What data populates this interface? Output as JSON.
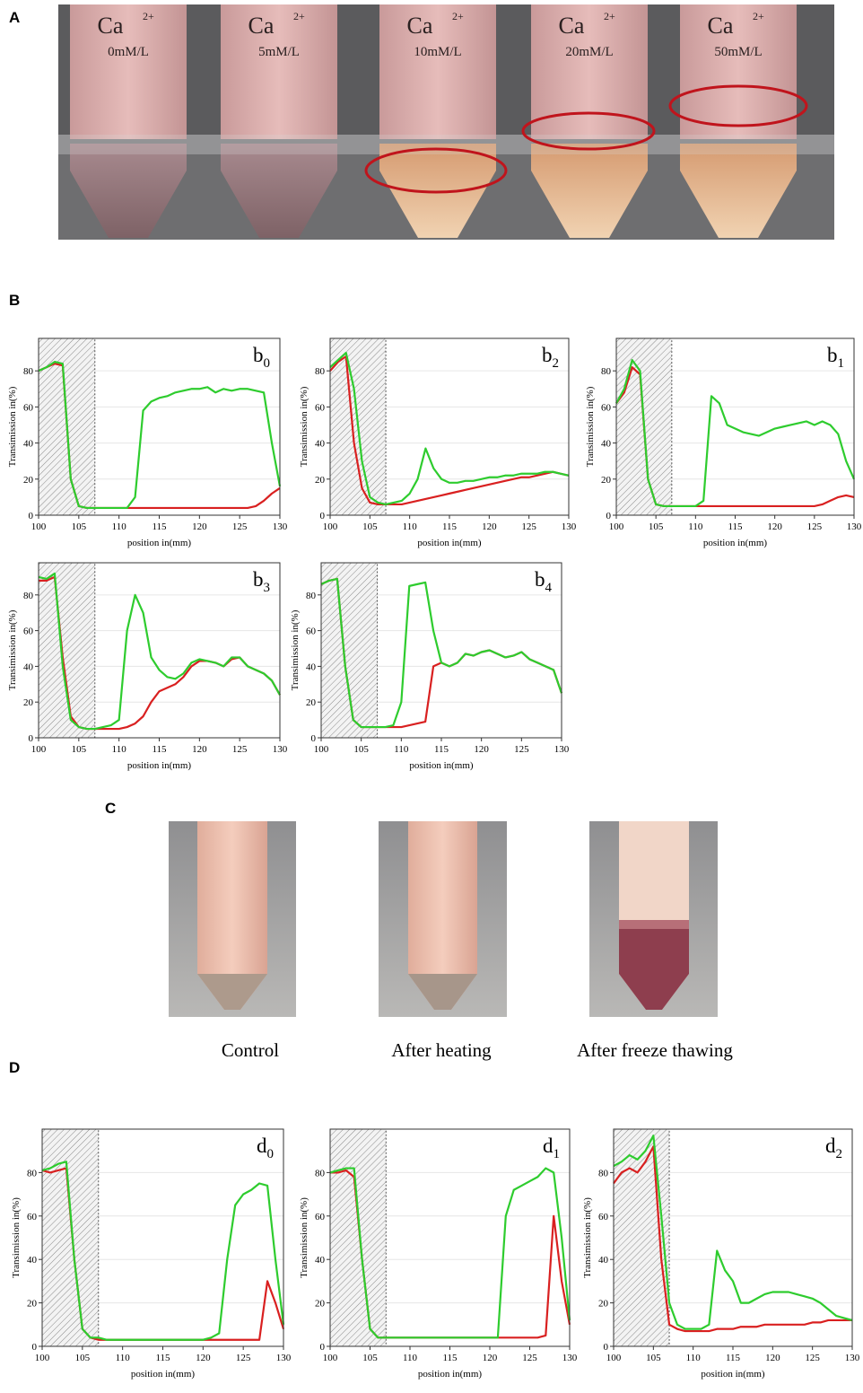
{
  "panel_labels": [
    "A",
    "B",
    "C",
    "D"
  ],
  "photo_a": {
    "tubes": [
      {
        "ion": "Ca",
        "charge": "2+",
        "concentration": "0mM/L"
      },
      {
        "ion": "Ca",
        "charge": "2+",
        "concentration": "5mM/L"
      },
      {
        "ion": "Ca",
        "charge": "2+",
        "concentration": "10mM/L"
      },
      {
        "ion": "Ca",
        "charge": "2+",
        "concentration": "20mM/L"
      },
      {
        "ion": "Ca",
        "charge": "2+",
        "concentration": "50mM/L"
      }
    ]
  },
  "photo_c": {
    "captions": [
      "Control",
      "After heating",
      "After freeze thawing"
    ]
  },
  "chart_data": [
    {
      "type": "line",
      "panel_label": {
        "text": "b",
        "sub": "0"
      },
      "x_label": "position in(mm)",
      "y_label": "Transimission in(%)",
      "xlim": [
        100,
        130
      ],
      "xticks": [
        100,
        105,
        110,
        115,
        120,
        125,
        130
      ],
      "ylim": [
        0,
        98
      ],
      "yticks": [
        0,
        20,
        40,
        60,
        80
      ],
      "hatched_region": [
        100,
        107
      ],
      "x": [
        100,
        101,
        102,
        103,
        104,
        105,
        106,
        107,
        108,
        109,
        110,
        111,
        112,
        113,
        114,
        115,
        116,
        117,
        118,
        119,
        120,
        121,
        122,
        123,
        124,
        125,
        126,
        127,
        128,
        129,
        130
      ],
      "series": [
        {
          "color": "#d92020",
          "values": [
            80,
            82,
            84,
            83,
            20,
            5,
            4,
            4,
            4,
            4,
            4,
            4,
            4,
            4,
            4,
            4,
            4,
            4,
            4,
            4,
            4,
            4,
            4,
            4,
            4,
            4,
            4,
            5,
            8,
            12,
            15
          ]
        },
        {
          "color": "#2ecc2e",
          "values": [
            80,
            82,
            85,
            84,
            20,
            5,
            4,
            4,
            4,
            4,
            4,
            4,
            10,
            58,
            63,
            65,
            66,
            68,
            69,
            70,
            70,
            71,
            68,
            70,
            69,
            70,
            70,
            69,
            68,
            40,
            16
          ]
        }
      ]
    },
    {
      "type": "line",
      "panel_label": {
        "text": "b",
        "sub": "2"
      },
      "x_label": "position in(mm)",
      "y_label": "Transimission in(%)",
      "xlim": [
        100,
        130
      ],
      "xticks": [
        100,
        105,
        110,
        115,
        120,
        125,
        130
      ],
      "ylim": [
        0,
        98
      ],
      "yticks": [
        0,
        20,
        40,
        60,
        80
      ],
      "hatched_region": [
        100,
        107
      ],
      "x": [
        100,
        101,
        102,
        103,
        104,
        105,
        106,
        107,
        108,
        109,
        110,
        111,
        112,
        113,
        114,
        115,
        116,
        117,
        118,
        119,
        120,
        121,
        122,
        123,
        124,
        125,
        126,
        127,
        128,
        129,
        130
      ],
      "series": [
        {
          "color": "#d92020",
          "values": [
            80,
            85,
            88,
            40,
            15,
            7,
            6,
            6,
            6,
            6,
            7,
            8,
            9,
            10,
            11,
            12,
            13,
            14,
            15,
            16,
            17,
            18,
            19,
            20,
            21,
            21,
            22,
            23,
            24,
            23,
            22
          ]
        },
        {
          "color": "#2ecc2e",
          "values": [
            82,
            86,
            90,
            70,
            30,
            10,
            7,
            6,
            7,
            8,
            12,
            20,
            37,
            26,
            20,
            18,
            18,
            19,
            19,
            20,
            21,
            21,
            22,
            22,
            23,
            23,
            23,
            24,
            24,
            23,
            22
          ]
        }
      ]
    },
    {
      "type": "line",
      "panel_label": {
        "text": "b",
        "sub": "1"
      },
      "x_label": "position in(mm)",
      "y_label": "Transimission in(%)",
      "xlim": [
        100,
        130
      ],
      "xticks": [
        100,
        105,
        110,
        115,
        120,
        125,
        130
      ],
      "ylim": [
        0,
        98
      ],
      "yticks": [
        0,
        20,
        40,
        60,
        80
      ],
      "hatched_region": [
        100,
        107
      ],
      "x": [
        100,
        101,
        102,
        103,
        104,
        105,
        106,
        107,
        108,
        109,
        110,
        111,
        112,
        113,
        114,
        115,
        116,
        117,
        118,
        119,
        120,
        121,
        122,
        123,
        124,
        125,
        126,
        127,
        128,
        129,
        130
      ],
      "series": [
        {
          "color": "#d92020",
          "values": [
            62,
            68,
            82,
            78,
            20,
            6,
            5,
            5,
            5,
            5,
            5,
            5,
            5,
            5,
            5,
            5,
            5,
            5,
            5,
            5,
            5,
            5,
            5,
            5,
            5,
            5,
            6,
            8,
            10,
            11,
            10
          ]
        },
        {
          "color": "#2ecc2e",
          "values": [
            62,
            70,
            86,
            80,
            20,
            6,
            5,
            5,
            5,
            5,
            5,
            8,
            66,
            62,
            50,
            48,
            46,
            45,
            44,
            46,
            48,
            49,
            50,
            51,
            52,
            50,
            52,
            50,
            45,
            30,
            20
          ]
        }
      ]
    },
    {
      "type": "line",
      "panel_label": {
        "text": "b",
        "sub": "3"
      },
      "x_label": "position in(mm)",
      "y_label": "Transimission in(%)",
      "xlim": [
        100,
        130
      ],
      "xticks": [
        100,
        105,
        110,
        115,
        120,
        125,
        130
      ],
      "ylim": [
        0,
        98
      ],
      "yticks": [
        0,
        20,
        40,
        60,
        80
      ],
      "hatched_region": [
        100,
        107
      ],
      "x": [
        100,
        101,
        102,
        103,
        104,
        105,
        106,
        107,
        108,
        109,
        110,
        111,
        112,
        113,
        114,
        115,
        116,
        117,
        118,
        119,
        120,
        121,
        122,
        123,
        124,
        125,
        126,
        127,
        128,
        129,
        130
      ],
      "series": [
        {
          "color": "#d92020",
          "values": [
            88,
            88,
            90,
            45,
            12,
            6,
            5,
            5,
            5,
            5,
            5,
            6,
            8,
            12,
            20,
            26,
            28,
            30,
            34,
            40,
            43,
            43,
            42,
            40,
            44,
            45,
            40,
            38,
            36,
            32,
            24
          ]
        },
        {
          "color": "#2ecc2e",
          "values": [
            90,
            89,
            92,
            40,
            10,
            6,
            5,
            5,
            6,
            7,
            10,
            60,
            80,
            70,
            45,
            38,
            34,
            33,
            36,
            42,
            44,
            43,
            42,
            40,
            45,
            45,
            40,
            38,
            36,
            32,
            24
          ]
        }
      ]
    },
    {
      "type": "line",
      "panel_label": {
        "text": "b",
        "sub": "4"
      },
      "x_label": "position in(mm)",
      "y_label": "Transimission in(%)",
      "xlim": [
        100,
        130
      ],
      "xticks": [
        100,
        105,
        110,
        115,
        120,
        125,
        130
      ],
      "ylim": [
        0,
        98
      ],
      "yticks": [
        0,
        20,
        40,
        60,
        80
      ],
      "hatched_region": [
        100,
        107
      ],
      "x": [
        100,
        101,
        102,
        103,
        104,
        105,
        106,
        107,
        108,
        109,
        110,
        111,
        112,
        113,
        114,
        115,
        116,
        117,
        118,
        119,
        120,
        121,
        122,
        123,
        124,
        125,
        126,
        127,
        128,
        129,
        130
      ],
      "series": [
        {
          "color": "#d92020",
          "values": [
            86,
            88,
            89,
            40,
            10,
            6,
            6,
            6,
            6,
            6,
            6,
            7,
            8,
            9,
            40,
            42,
            40,
            42,
            47,
            46,
            48,
            49,
            47,
            45,
            46,
            48,
            44,
            42,
            40,
            38,
            25
          ]
        },
        {
          "color": "#2ecc2e",
          "values": [
            86,
            88,
            89,
            40,
            10,
            6,
            6,
            6,
            6,
            7,
            20,
            85,
            86,
            87,
            60,
            42,
            40,
            42,
            47,
            46,
            48,
            49,
            47,
            45,
            46,
            48,
            44,
            42,
            40,
            38,
            25
          ]
        }
      ]
    },
    {
      "type": "line",
      "panel_label": {
        "text": "d",
        "sub": "0"
      },
      "x_label": "position in(mm)",
      "y_label": "Transimission in(%)",
      "xlim": [
        100,
        130
      ],
      "xticks": [
        100,
        105,
        110,
        115,
        120,
        125,
        130
      ],
      "ylim": [
        0,
        100
      ],
      "yticks": [
        0,
        20,
        40,
        60,
        80
      ],
      "hatched_region": [
        100,
        107
      ],
      "x": [
        100,
        101,
        102,
        103,
        104,
        105,
        106,
        107,
        108,
        109,
        110,
        111,
        112,
        113,
        114,
        115,
        116,
        117,
        118,
        119,
        120,
        121,
        122,
        123,
        124,
        125,
        126,
        127,
        128,
        129,
        130
      ],
      "series": [
        {
          "color": "#d92020",
          "values": [
            81,
            80,
            81,
            82,
            40,
            8,
            4,
            3,
            3,
            3,
            3,
            3,
            3,
            3,
            3,
            3,
            3,
            3,
            3,
            3,
            3,
            3,
            3,
            3,
            3,
            3,
            3,
            3,
            30,
            20,
            8
          ]
        },
        {
          "color": "#2ecc2e",
          "values": [
            81,
            82,
            84,
            85,
            40,
            8,
            4,
            4,
            3,
            3,
            3,
            3,
            3,
            3,
            3,
            3,
            3,
            3,
            3,
            3,
            3,
            4,
            6,
            40,
            65,
            70,
            72,
            75,
            74,
            40,
            10
          ]
        }
      ]
    },
    {
      "type": "line",
      "panel_label": {
        "text": "d",
        "sub": "1"
      },
      "x_label": "position in(mm)",
      "y_label": "Transimission in(%)",
      "xlim": [
        100,
        130
      ],
      "xticks": [
        100,
        105,
        110,
        115,
        120,
        125,
        130
      ],
      "ylim": [
        0,
        100
      ],
      "yticks": [
        0,
        20,
        40,
        60,
        80
      ],
      "hatched_region": [
        100,
        107
      ],
      "x": [
        100,
        101,
        102,
        103,
        104,
        105,
        106,
        107,
        108,
        109,
        110,
        111,
        112,
        113,
        114,
        115,
        116,
        117,
        118,
        119,
        120,
        121,
        122,
        123,
        124,
        125,
        126,
        127,
        128,
        129,
        130
      ],
      "series": [
        {
          "color": "#d92020",
          "values": [
            80,
            80,
            81,
            78,
            40,
            8,
            4,
            4,
            4,
            4,
            4,
            4,
            4,
            4,
            4,
            4,
            4,
            4,
            4,
            4,
            4,
            4,
            4,
            4,
            4,
            4,
            4,
            5,
            60,
            30,
            10
          ]
        },
        {
          "color": "#2ecc2e",
          "values": [
            80,
            81,
            82,
            82,
            40,
            8,
            4,
            4,
            4,
            4,
            4,
            4,
            4,
            4,
            4,
            4,
            4,
            4,
            4,
            4,
            4,
            4,
            60,
            72,
            74,
            76,
            78,
            82,
            80,
            50,
            12
          ]
        }
      ]
    },
    {
      "type": "line",
      "panel_label": {
        "text": "d",
        "sub": "2"
      },
      "x_label": "position in(mm)",
      "y_label": "Transimission in(%)",
      "xlim": [
        100,
        130
      ],
      "xticks": [
        100,
        105,
        110,
        115,
        120,
        125,
        130
      ],
      "ylim": [
        0,
        100
      ],
      "yticks": [
        0,
        20,
        40,
        60,
        80
      ],
      "hatched_region": [
        100,
        107
      ],
      "x": [
        100,
        101,
        102,
        103,
        104,
        105,
        106,
        107,
        108,
        109,
        110,
        111,
        112,
        113,
        114,
        115,
        116,
        117,
        118,
        119,
        120,
        121,
        122,
        123,
        124,
        125,
        126,
        127,
        128,
        129,
        130
      ],
      "series": [
        {
          "color": "#d92020",
          "values": [
            75,
            80,
            82,
            80,
            85,
            92,
            40,
            10,
            8,
            7,
            7,
            7,
            7,
            8,
            8,
            8,
            9,
            9,
            9,
            10,
            10,
            10,
            10,
            10,
            10,
            11,
            11,
            12,
            12,
            12,
            12
          ]
        },
        {
          "color": "#2ecc2e",
          "values": [
            83,
            85,
            88,
            86,
            90,
            97,
            60,
            20,
            10,
            8,
            8,
            8,
            10,
            44,
            35,
            30,
            20,
            20,
            22,
            24,
            25,
            25,
            25,
            24,
            23,
            22,
            20,
            17,
            14,
            13,
            12
          ]
        }
      ]
    }
  ]
}
